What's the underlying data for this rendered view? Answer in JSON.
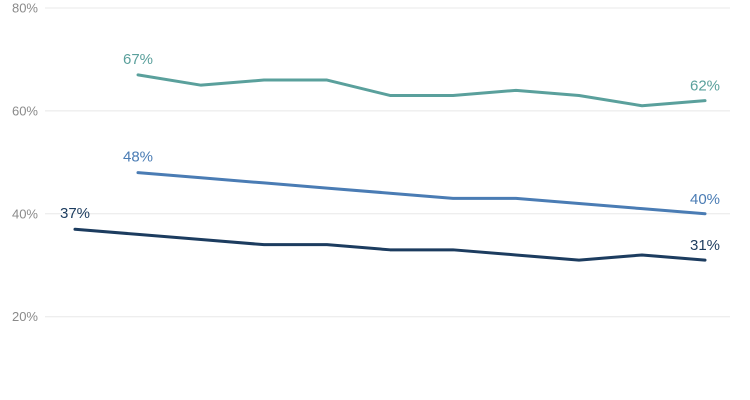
{
  "chart_data": {
    "type": "line",
    "title": "",
    "x_axis_labels_visible": false,
    "x_index": [
      0,
      1,
      2,
      3,
      4,
      5,
      6,
      7,
      8,
      9,
      10
    ],
    "grid": "horizontal",
    "background_color": "#FFFFFF",
    "gridline_color": "#E8E8E8",
    "y_axis": {
      "color": "#8A8A8A",
      "ylim": [
        14,
        84
      ],
      "ticks": [
        {
          "value": 80,
          "label": "80%"
        },
        {
          "value": 60,
          "label": "60%"
        },
        {
          "value": 40,
          "label": "40%"
        },
        {
          "value": 20,
          "label": "20%"
        }
      ]
    },
    "series": [
      {
        "name": "top-teal-line",
        "color": "#5AA09C",
        "values": [
          null,
          67,
          65,
          66,
          66,
          63,
          63,
          64,
          63,
          61,
          62
        ],
        "start_label": "67%",
        "end_label": "62%"
      },
      {
        "name": "middle-blue-line",
        "color": "#4A7CB4",
        "values": [
          null,
          48,
          47,
          46,
          45,
          44,
          43,
          43,
          42,
          41,
          40
        ],
        "start_label": "48%",
        "end_label": "40%"
      },
      {
        "name": "bottom-navy-line",
        "color": "#1C3C5F",
        "values": [
          37,
          36,
          35,
          34,
          34,
          33,
          33,
          32,
          31,
          32,
          31
        ],
        "start_label": "37%",
        "end_label": "31%"
      }
    ]
  }
}
